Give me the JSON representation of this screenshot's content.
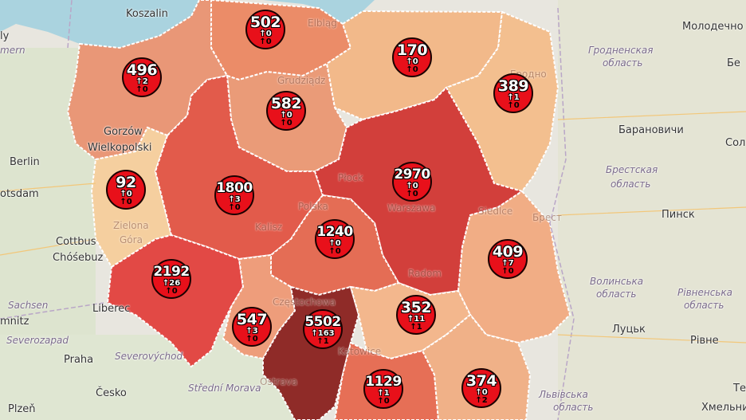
{
  "places": [
    {
      "id": "koszalin",
      "label": "Koszalin",
      "style": ""
    },
    {
      "id": "elblag",
      "label": "Elbląg",
      "style": "faint"
    },
    {
      "id": "grudziadz",
      "label": "Grudziądz",
      "style": "faint"
    },
    {
      "id": "gorzow",
      "label": "Gorzów",
      "style": ""
    },
    {
      "id": "wielkopolski",
      "label": "Wielkopolski",
      "style": ""
    },
    {
      "id": "berlin",
      "label": "Berlin",
      "style": ""
    },
    {
      "id": "potsdam",
      "label": "otsdam",
      "style": ""
    },
    {
      "id": "cottbus",
      "label": "Cottbus",
      "style": ""
    },
    {
      "id": "chosebuz",
      "label": "Chóśebuz",
      "style": ""
    },
    {
      "id": "zielona",
      "label": "Zielona",
      "style": "faint"
    },
    {
      "id": "gora",
      "label": "Góra",
      "style": "faint"
    },
    {
      "id": "sachsen",
      "label": "Sachsen",
      "style": "italic"
    },
    {
      "id": "mnitz",
      "label": "mnitz",
      "style": ""
    },
    {
      "id": "liberec",
      "label": "Liberec",
      "style": ""
    },
    {
      "id": "severozapad",
      "label": "Severozapad",
      "style": "italic"
    },
    {
      "id": "praha",
      "label": "Praha",
      "style": ""
    },
    {
      "id": "severovychod",
      "label": "Severovýchod",
      "style": "italic"
    },
    {
      "id": "cesko",
      "label": "Česko",
      "style": ""
    },
    {
      "id": "plzen",
      "label": "Plzeň",
      "style": ""
    },
    {
      "id": "stredni",
      "label": "Střední Morava",
      "style": "italic"
    },
    {
      "id": "ostrava",
      "label": "Ostrava",
      "style": "faint"
    },
    {
      "id": "kalisz",
      "label": "Kalisz",
      "style": "faint"
    },
    {
      "id": "polska",
      "label": "Polska",
      "style": "faint"
    },
    {
      "id": "plock",
      "label": "Płock",
      "style": "faint"
    },
    {
      "id": "warszawa",
      "label": "Warszawa",
      "style": "faint"
    },
    {
      "id": "siedlce",
      "label": "Siedlce",
      "style": "faint"
    },
    {
      "id": "radom",
      "label": "Radom",
      "style": "faint"
    },
    {
      "id": "czestochowa",
      "label": "Częstochowa",
      "style": "faint"
    },
    {
      "id": "katowice",
      "label": "Katowice",
      "style": "faint"
    },
    {
      "id": "grodno",
      "label": "Гродно",
      "style": "faint"
    },
    {
      "id": "brest",
      "label": "Брест",
      "style": "faint"
    },
    {
      "id": "pinsk",
      "label": "Пинск",
      "style": ""
    },
    {
      "id": "baranovichi",
      "label": "Барановичи",
      "style": ""
    },
    {
      "id": "molodechno",
      "label": "Молодечно",
      "style": ""
    },
    {
      "id": "be",
      "label": "Бе",
      "style": ""
    },
    {
      "id": "sol",
      "label": "Сол",
      "style": ""
    },
    {
      "id": "grodnenskaya",
      "label": "Гродненская",
      "style": "italic"
    },
    {
      "id": "oblast1",
      "label": "область",
      "style": "italic"
    },
    {
      "id": "brestskaya",
      "label": "Брестская",
      "style": "italic"
    },
    {
      "id": "oblast2",
      "label": "область",
      "style": "italic"
    },
    {
      "id": "volynska",
      "label": "Волинська",
      "style": "italic"
    },
    {
      "id": "oblast3",
      "label": "область",
      "style": "italic"
    },
    {
      "id": "rivnenska",
      "label": "Рівненська",
      "style": "italic"
    },
    {
      "id": "oblast4",
      "label": "область",
      "style": "italic"
    },
    {
      "id": "lutsk",
      "label": "Луцьк",
      "style": ""
    },
    {
      "id": "rivne",
      "label": "Рівне",
      "style": ""
    },
    {
      "id": "khmelnytskyi",
      "label": "Хмельни",
      "style": ""
    },
    {
      "id": "lvivska",
      "label": "Львівська",
      "style": "italic"
    },
    {
      "id": "oblast5",
      "label": "область",
      "style": "italic"
    },
    {
      "id": "tern",
      "label": "Терн",
      "style": ""
    },
    {
      "id": "kolory",
      "label": "ly",
      "style": ""
    },
    {
      "id": "mern",
      "label": "mern",
      "style": "italic"
    }
  ],
  "markers": [
    {
      "id": "zachodniopomorskie",
      "total": "496",
      "new_cases": "2",
      "new_deaths": "0"
    },
    {
      "id": "pomorskie",
      "total": "502",
      "new_cases": "0",
      "new_deaths": "0"
    },
    {
      "id": "warminsko-mazurskie",
      "total": "170",
      "new_cases": "0",
      "new_deaths": "0"
    },
    {
      "id": "podlaskie",
      "total": "389",
      "new_cases": "1",
      "new_deaths": "0"
    },
    {
      "id": "kujawsko-pomorskie",
      "total": "582",
      "new_cases": "0",
      "new_deaths": "0"
    },
    {
      "id": "lubuskie",
      "total": "92",
      "new_cases": "0",
      "new_deaths": "0"
    },
    {
      "id": "wielkopolskie",
      "total": "1800",
      "new_cases": "3",
      "new_deaths": "0"
    },
    {
      "id": "mazowieckie",
      "total": "2970",
      "new_cases": "0",
      "new_deaths": "0"
    },
    {
      "id": "lodzkie",
      "total": "1240",
      "new_cases": "0",
      "new_deaths": "0"
    },
    {
      "id": "lubelskie",
      "total": "409",
      "new_cases": "7",
      "new_deaths": "0"
    },
    {
      "id": "dolnoslaskie",
      "total": "2192",
      "new_cases": "26",
      "new_deaths": "0"
    },
    {
      "id": "opolskie",
      "total": "547",
      "new_cases": "3",
      "new_deaths": "0"
    },
    {
      "id": "slaskie",
      "total": "5502",
      "new_cases": "163",
      "new_deaths": "1"
    },
    {
      "id": "swietokrzyskie",
      "total": "352",
      "new_cases": "11",
      "new_deaths": "1"
    },
    {
      "id": "malopolskie",
      "total": "1129",
      "new_cases": "1",
      "new_deaths": "0"
    },
    {
      "id": "podkarpackie",
      "total": "374",
      "new_cases": "0",
      "new_deaths": "2"
    }
  ],
  "colors": {
    "land": "#e8e6df",
    "water": "#aad3df",
    "border": "#ffffff",
    "marker_fill": "#e8101a",
    "marker_stroke": "#1a0000"
  },
  "icons": {
    "up": "arrow-up-icon"
  }
}
